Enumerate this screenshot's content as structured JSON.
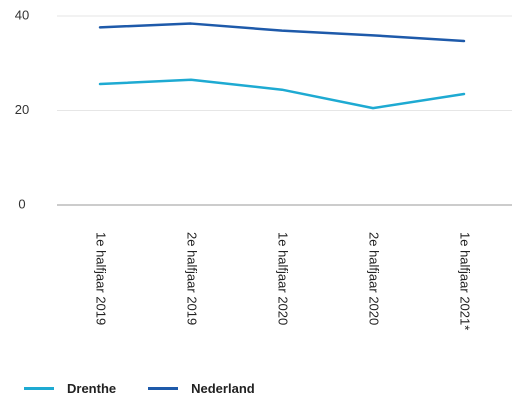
{
  "chart_data": {
    "type": "line",
    "title": "",
    "xlabel": "",
    "ylabel": "",
    "categories": [
      "1e halfjaar 2019",
      "2e halfjaar 2019",
      "1e halfjaar 2020",
      "2e halfjaar 2020",
      "1e halfjaar 2021*"
    ],
    "series": [
      {
        "name": "Drenthe",
        "values": [
          25.6,
          26.5,
          24.4,
          20.5,
          23.5
        ],
        "color": "#1eaad2"
      },
      {
        "name": "Nederland",
        "values": [
          37.6,
          38.4,
          36.9,
          35.9,
          34.7
        ],
        "color": "#1e5aaa"
      }
    ],
    "ylim": [
      0,
      40
    ],
    "yticks": [
      0,
      20,
      40
    ],
    "grid": "horizontal",
    "legend_position": "bottom-left",
    "colors": {
      "gridline": "#e6e6e6",
      "baseline": "#999999"
    }
  }
}
